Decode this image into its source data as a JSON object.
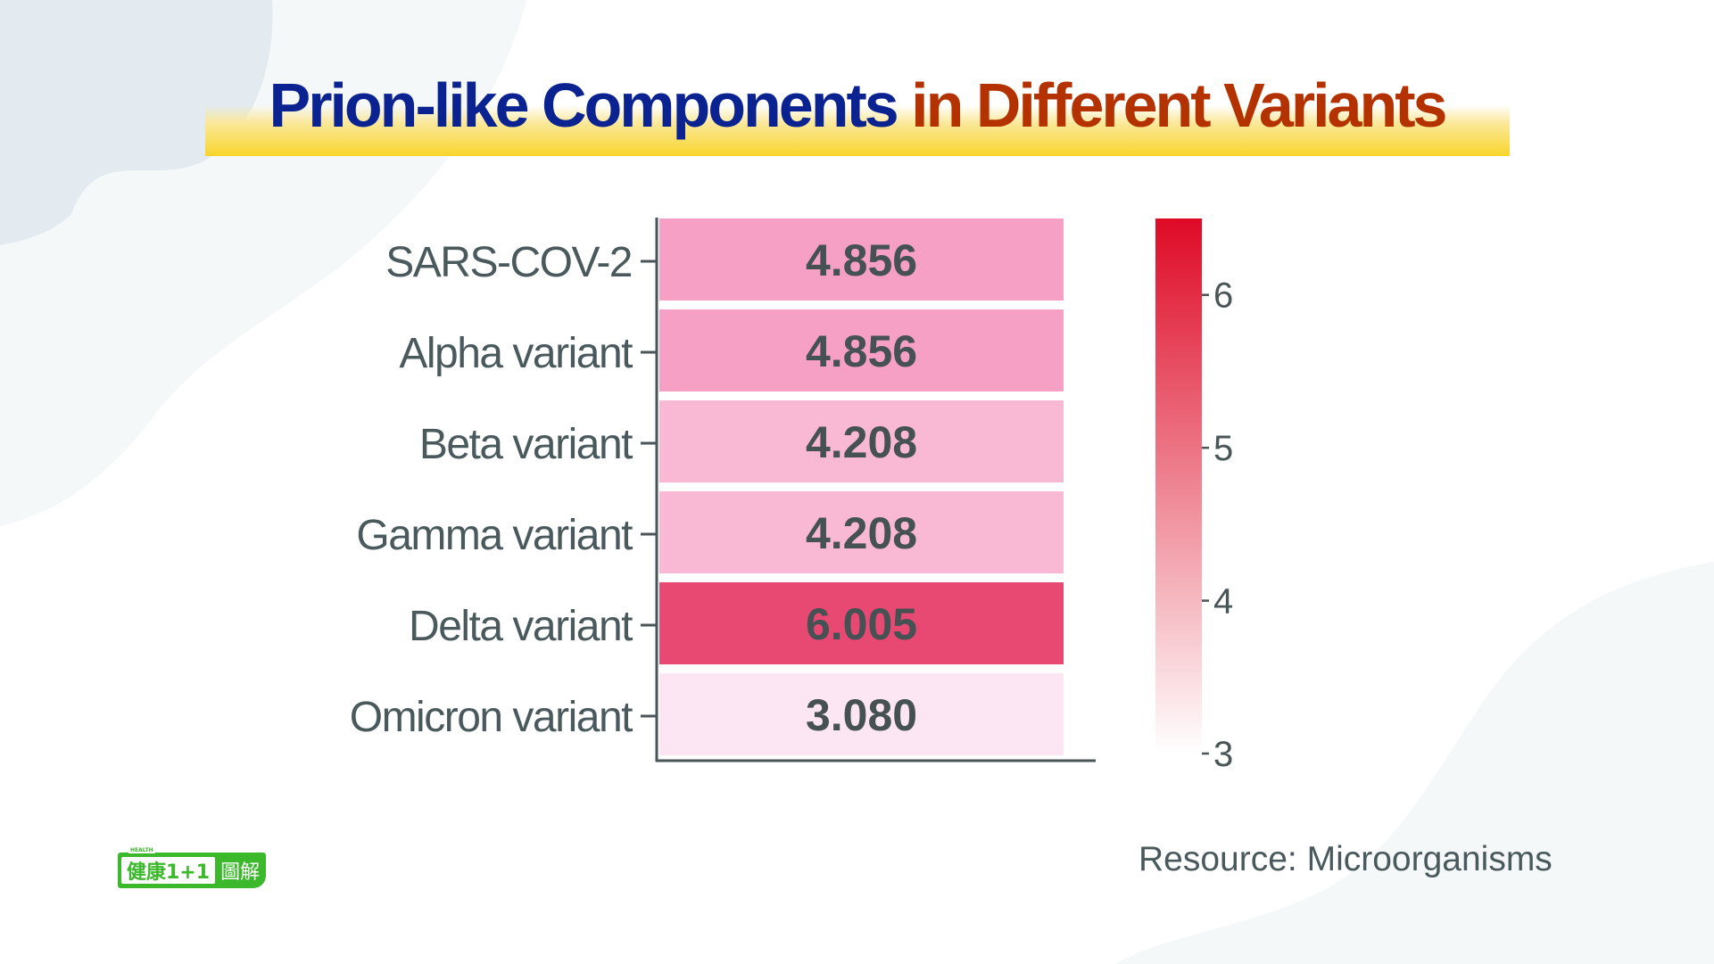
{
  "title": {
    "part1": "Prion-like Components",
    "part2": "in Different Variants",
    "part1_color": "#0b2390",
    "part2_color": "#b33200",
    "underline_color": "#f8d52a"
  },
  "source": "Resource: Microorganisms",
  "logo": {
    "tag": "HEALTH",
    "main": "健康1+1",
    "suffix": "圖解",
    "color": "#3bb82b"
  },
  "chart_data": {
    "type": "heatmap",
    "title": "Prion-like Components in Different Variants",
    "xlabel": "",
    "ylabel": "",
    "categories": [
      "SARS-COV-2",
      "Alpha variant",
      "Beta variant",
      "Gamma variant",
      "Delta variant",
      "Omicron variant"
    ],
    "values": [
      4.856,
      4.856,
      4.208,
      4.208,
      6.005,
      3.08
    ],
    "value_labels": [
      "4.856",
      "4.856",
      "4.208",
      "4.208",
      "6.005",
      "3.080"
    ],
    "colorbar": {
      "range": [
        3.0,
        6.5
      ],
      "ticks": [
        3,
        4,
        5,
        6
      ],
      "tick_labels": [
        "3",
        "4",
        "5",
        "6"
      ],
      "color_low": "#ffffff",
      "color_high": "#de0a26"
    },
    "grid": false,
    "legend": "colorbar-right"
  }
}
